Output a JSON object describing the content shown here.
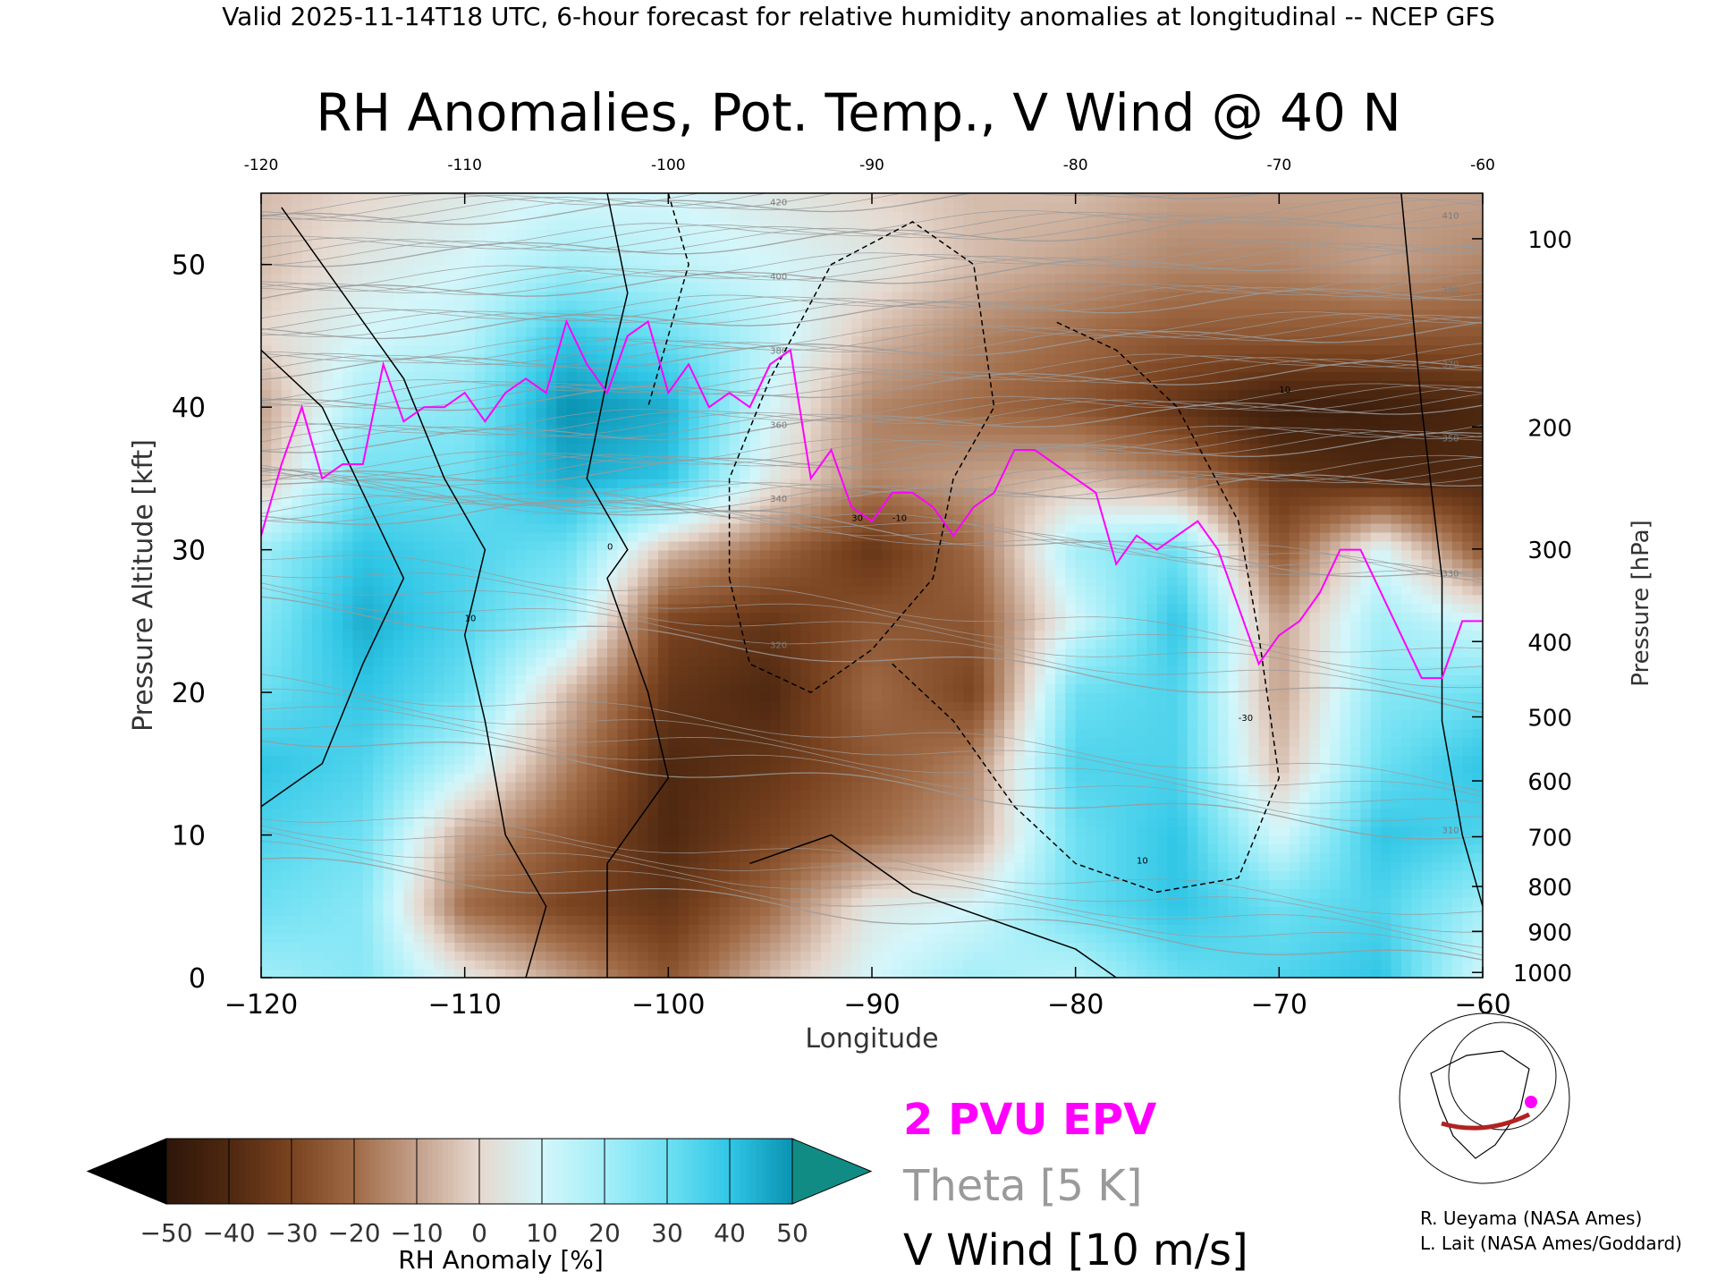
{
  "header": {
    "valid_line": "Valid 2025-11-14T18 UTC, 6-hour forecast for relative humidity anomalies at longitudinal -- NCEP GFS"
  },
  "chart_data": {
    "type": "heatmap",
    "title": "RH Anomalies, Pot. Temp., V Wind @ 40 N",
    "xlabel": "Longitude",
    "ylabel_left": "Pressure Altitude [kft]",
    "ylabel_right": "Pressure [hPa]",
    "xlim": [
      -120,
      -60
    ],
    "ylim": [
      0,
      55
    ],
    "x_ticks": [
      -120,
      -110,
      -100,
      -90,
      -80,
      -70,
      -60
    ],
    "x_tick_labels": [
      "−120",
      "−110",
      "−100",
      "−90",
      "−80",
      "−70",
      "−60"
    ],
    "x_top_tick_labels": [
      "-120",
      "-110",
      "-100",
      "-90",
      "-80",
      "-70",
      "-60"
    ],
    "y_ticks": [
      0,
      10,
      20,
      30,
      40,
      50
    ],
    "y_tick_labels": [
      "0",
      "10",
      "20",
      "30",
      "40",
      "50"
    ],
    "pressure_ticks": [
      {
        "hpa": 100,
        "label": "100"
      },
      {
        "hpa": 200,
        "label": "200"
      },
      {
        "hpa": 300,
        "label": "300"
      },
      {
        "hpa": 400,
        "label": "400"
      },
      {
        "hpa": 500,
        "label": "500"
      },
      {
        "hpa": 600,
        "label": "600"
      },
      {
        "hpa": 700,
        "label": "700"
      },
      {
        "hpa": 800,
        "label": "800"
      },
      {
        "hpa": 900,
        "label": "900"
      },
      {
        "hpa": 1000,
        "label": "1000"
      }
    ],
    "colorbar": {
      "label": "RH Anomaly [%]",
      "tick_labels": [
        "−50",
        "−40",
        "−30",
        "−20",
        "−10",
        "0",
        "10",
        "20",
        "30",
        "40",
        "50"
      ],
      "tick_values": [
        -50,
        -40,
        -30,
        -20,
        -10,
        0,
        10,
        20,
        30,
        40,
        50
      ],
      "colors": [
        "#2e160a",
        "#4e2810",
        "#7a4320",
        "#9f6a45",
        "#c3a08a",
        "#e6d8ce",
        "#d4f6fa",
        "#a4eef8",
        "#6ee0f2",
        "#30c6e6",
        "#0a92b2"
      ],
      "under_color": "#000000",
      "over_color": "#118c84"
    },
    "theta_labels": [
      "310",
      "320",
      "330",
      "340",
      "350",
      "360",
      "370",
      "380",
      "390",
      "400",
      "410",
      "420"
    ],
    "vwind_labels": [
      "0",
      "10",
      "-10",
      "30",
      "-30"
    ],
    "rh_anomaly_field": {
      "x": [
        -120,
        -115,
        -110,
        -105,
        -100,
        -95,
        -90,
        -85,
        -80,
        -75,
        -70,
        -65,
        -60
      ],
      "y": [
        0,
        5,
        10,
        15,
        20,
        25,
        30,
        35,
        40,
        45,
        50,
        55
      ],
      "values": [
        [
          20,
          25,
          5,
          -10,
          -25,
          -5,
          10,
          20,
          15,
          30,
          35,
          40,
          10
        ],
        [
          30,
          25,
          -20,
          -30,
          -35,
          -20,
          5,
          10,
          30,
          40,
          30,
          35,
          20
        ],
        [
          35,
          30,
          -10,
          -25,
          -40,
          -30,
          -20,
          -10,
          30,
          40,
          10,
          40,
          35
        ],
        [
          40,
          35,
          15,
          -15,
          -40,
          -35,
          -25,
          -15,
          35,
          35,
          -5,
          30,
          40
        ],
        [
          30,
          40,
          30,
          -5,
          -35,
          -40,
          -20,
          -30,
          30,
          35,
          -10,
          25,
          30
        ],
        [
          25,
          45,
          35,
          20,
          -30,
          -35,
          -25,
          -25,
          10,
          40,
          -10,
          20,
          10
        ],
        [
          20,
          40,
          35,
          30,
          -5,
          -20,
          -35,
          -20,
          20,
          30,
          -25,
          10,
          -25
        ],
        [
          -5,
          30,
          30,
          45,
          40,
          5,
          -15,
          -10,
          -5,
          -15,
          -35,
          -40,
          -40
        ],
        [
          -10,
          20,
          25,
          50,
          45,
          10,
          -15,
          -20,
          -25,
          -35,
          -45,
          -45,
          -40
        ],
        [
          0,
          10,
          15,
          40,
          30,
          15,
          -5,
          -15,
          -20,
          -25,
          -25,
          -25,
          -25
        ],
        [
          -5,
          5,
          10,
          20,
          15,
          10,
          5,
          -5,
          -10,
          -15,
          -15,
          -10,
          -15
        ],
        [
          -5,
          0,
          5,
          10,
          10,
          5,
          0,
          -5,
          -5,
          -10,
          -10,
          -10,
          -10
        ]
      ]
    },
    "theta_contours_K": [
      300,
      310,
      320,
      330,
      340,
      350,
      360,
      370,
      380,
      390,
      400,
      410,
      420
    ],
    "pv_2pvu_line": {
      "lon": [
        -120,
        -119,
        -118,
        -117,
        -116,
        -115,
        -114,
        -113,
        -112,
        -111,
        -110,
        -109,
        -108,
        -107,
        -106,
        -105,
        -104,
        -103,
        -102,
        -101,
        -100,
        -99,
        -98,
        -97,
        -96,
        -95,
        -94,
        -93,
        -92,
        -91,
        -90,
        -89,
        -88,
        -87,
        -86,
        -85,
        -84,
        -83,
        -82,
        -81,
        -80,
        -79,
        -78,
        -77,
        -76,
        -75,
        -74,
        -73,
        -72,
        -71,
        -70,
        -69,
        -68,
        -67,
        -66,
        -65,
        -64,
        -63,
        -62,
        -61,
        -60
      ],
      "alt_kft": [
        31,
        36,
        40,
        35,
        36,
        36,
        43,
        39,
        40,
        40,
        41,
        39,
        41,
        42,
        41,
        46,
        43,
        41,
        45,
        46,
        41,
        43,
        40,
        41,
        40,
        43,
        44,
        35,
        37,
        33,
        32,
        34,
        34,
        33,
        31,
        33,
        34,
        37,
        37,
        36,
        35,
        34,
        29,
        31,
        30,
        31,
        32,
        30,
        26,
        22,
        24,
        25,
        27,
        30,
        30,
        27,
        24,
        21,
        21,
        25,
        25
      ]
    },
    "vwind_contours_mps": [
      -30,
      -20,
      -10,
      0,
      10,
      20,
      30
    ],
    "legend": [
      {
        "label": "2 PVU EPV",
        "color": "#ff00ff"
      },
      {
        "label": "Theta [5 K]",
        "color": "#9a9a9a"
      },
      {
        "label": "V Wind [10 m/s]",
        "color": "#000000"
      }
    ],
    "grid": false
  },
  "credits": {
    "line1": "R. Ueyama (NASA Ames)",
    "line2": "L. Lait (NASA Ames/Goddard)"
  },
  "locator_map": {
    "section_color": "#b22222",
    "marker_color": "#ff00ff"
  }
}
